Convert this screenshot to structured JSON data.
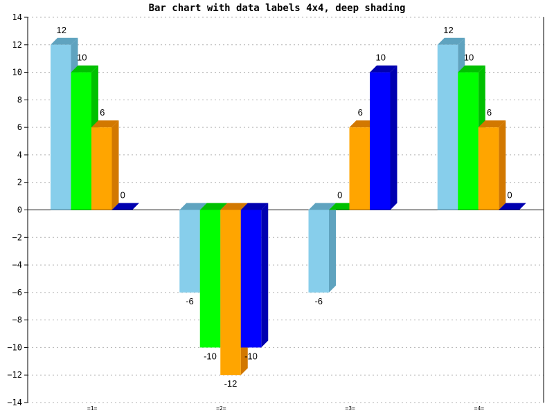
{
  "chart_data": {
    "type": "bar",
    "title": "Bar chart with data labels 4x4, deep shading",
    "xlabel": "",
    "ylabel": "",
    "categories": [
      "=1=",
      "=2=",
      "=3=",
      "=4="
    ],
    "series": [
      {
        "values": [
          12,
          -6,
          -6,
          12
        ],
        "color": "#87ceeb",
        "shade": "#5fa3bf"
      },
      {
        "values": [
          10,
          -10,
          0,
          10
        ],
        "color": "#00ff00",
        "shade": "#00c000"
      },
      {
        "values": [
          6,
          -12,
          6,
          6
        ],
        "color": "#ffa500",
        "shade": "#d27800"
      },
      {
        "values": [
          0,
          -10,
          10,
          0
        ],
        "color": "#0000ff",
        "shade": "#0000b0"
      }
    ],
    "ylim": [
      -14,
      14
    ],
    "yticks": [
      -14,
      -12,
      -10,
      -8,
      -6,
      -4,
      -2,
      0,
      2,
      4,
      6,
      8,
      10,
      12,
      14
    ],
    "grid": true,
    "data_labels": true,
    "shading": "deep"
  }
}
